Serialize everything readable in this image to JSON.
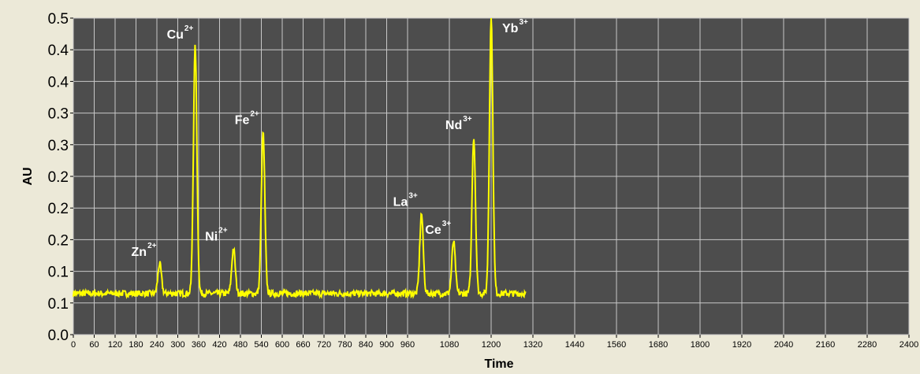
{
  "colors": {
    "plot_background": "#4d4d4d",
    "grid": "#c8c8c8",
    "trace": "#ffff00",
    "frame_background": "#ece9d8"
  },
  "chart_data": {
    "type": "line",
    "xlabel": "Time",
    "ylabel": "AU",
    "xlim": [
      0,
      2400
    ],
    "ylim": [
      0,
      0.5
    ],
    "grid": true,
    "x_ticks": [
      "0",
      "60",
      "120",
      "180",
      "240",
      "300",
      "360",
      "420",
      "480",
      "540",
      "600",
      "660",
      "720",
      "780",
      "840",
      "900",
      "960",
      "1080",
      "1200",
      "1320",
      "1440",
      "1560",
      "1680",
      "1800",
      "1920",
      "2040",
      "2160",
      "2280",
      "2400"
    ],
    "x_tick_values": [
      0,
      60,
      120,
      180,
      240,
      300,
      360,
      420,
      480,
      540,
      600,
      660,
      720,
      780,
      840,
      900,
      960,
      1080,
      1200,
      1320,
      1440,
      1560,
      1680,
      1800,
      1920,
      2040,
      2160,
      2280,
      2400
    ],
    "y_ticks": [
      "0.0",
      "0.1",
      "0.1",
      "0.2",
      "0.2",
      "0.2",
      "0.3",
      "0.3",
      "0.4",
      "0.4",
      "0.5"
    ],
    "y_tick_values": [
      0,
      0.05,
      0.1,
      0.15,
      0.2,
      0.25,
      0.3,
      0.35,
      0.4,
      0.45,
      0.5
    ],
    "baseline": 0.065,
    "trace_end": 1300,
    "peaks": [
      {
        "ion": "Zn",
        "charge": "2+",
        "x": 248,
        "height": 0.112
      },
      {
        "ion": "Cu",
        "charge": "2+",
        "x": 350,
        "height": 0.455
      },
      {
        "ion": "Ni",
        "charge": "2+",
        "x": 460,
        "height": 0.136
      },
      {
        "ion": "Fe",
        "charge": "2+",
        "x": 545,
        "height": 0.32
      },
      {
        "ion": "La",
        "charge": "3+",
        "x": 1000,
        "height": 0.191
      },
      {
        "ion": "Ce",
        "charge": "3+",
        "x": 1092,
        "height": 0.147
      },
      {
        "ion": "Nd",
        "charge": "3+",
        "x": 1150,
        "height": 0.312
      },
      {
        "ion": "Yb",
        "charge": "3+",
        "x": 1200,
        "height": 0.5
      }
    ]
  }
}
